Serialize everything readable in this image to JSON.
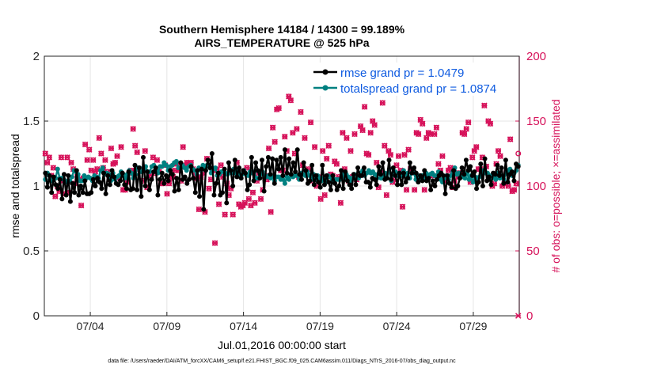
{
  "chart_data": {
    "type": "line",
    "title_line1": "Southern Hemisphere 14184 / 14300 = 99.189%",
    "title_line2": "AIRS_TEMPERATURE @ 525 hPa",
    "xlabel": "Jul.01,2016 00:00:00 start",
    "ylabel_left": "rmse and totalspread",
    "ylabel_right": "# of obs: o=possible; ×=assimilated",
    "footnote": "data file: /Users/raeder/DAI/ATM_forcXX/CAM6_setup/f.e21.FHIST_BGC.f09_025.CAM6assim.011/Diags_NTrS_2016-07/obs_diag_output.nc",
    "xlim": [
      1,
      32
    ],
    "ylim_left": [
      0,
      2
    ],
    "ylim_right": [
      0,
      200
    ],
    "x_ticks": [
      {
        "value": 4,
        "label": "07/04"
      },
      {
        "value": 9,
        "label": "07/09"
      },
      {
        "value": 14,
        "label": "07/14"
      },
      {
        "value": 19,
        "label": "07/19"
      },
      {
        "value": 24,
        "label": "07/24"
      },
      {
        "value": 29,
        "label": "07/29"
      }
    ],
    "y_ticks_left": [
      "0",
      "0.5",
      "1",
      "1.5",
      "2"
    ],
    "y_ticks_right": [
      "0",
      "50",
      "100",
      "150",
      "200"
    ],
    "grid": true,
    "legend_position": "top-right",
    "colors": {
      "rmse": "#000000",
      "spread": "#008080",
      "obs": "#d6125a"
    },
    "series": [
      {
        "name": "rmse grand pr = 1.0479",
        "key": "rmse",
        "values": [
          1.1,
          0.99,
          1.08,
          0.95,
          1.07,
          1.01,
          0.98,
          1.05,
          0.9,
          1.09,
          0.93,
          1.08,
          0.88,
          1.02,
          0.95,
          1.12,
          0.93,
          1.0,
          0.95,
          1.04,
          0.94,
          0.94,
          0.95,
          1.05,
          1.0,
          1.06,
          1.03,
          0.98,
          1.1,
          0.94,
          1.08,
          1.01,
          1.12,
          1.07,
          1.02,
          1.01,
          1.04,
          1.1,
          1.01,
          0.98,
          1.11,
          0.97,
          0.98,
          1.16,
          0.97,
          1.14,
          0.92,
          1.22,
          1.0,
          1.11,
          0.97,
          1.05,
          1.11,
          1.14,
          0.93,
          1.05,
          1.1,
          1.02,
          1.08,
          1.04,
          1.12,
          1.09,
          0.96,
          1.06,
          0.97,
          1.18,
          1.05,
          1.07,
          1.02,
          1.05,
          1.15,
          1.06,
          0.95,
          1.12,
          0.92,
          1.13,
          0.82,
          1.12,
          1.2,
          1.14,
          1.25,
          0.93,
          1.02,
          1.1,
          0.93,
          0.95,
          1.13,
          0.87,
          1.18,
          1.12,
          1.0,
          1.2,
          1.07,
          1.14,
          1.06,
          1.12,
          1.1,
          0.97,
          1.01,
          1.22,
          1.04,
          1.18,
          1.12,
          1.06,
          1.2,
          0.96,
          1.15,
          1.22,
          1.09,
          1.21,
          1.02,
          1.2,
          1.13,
          1.22,
          1.08,
          1.28,
          1.1,
          1.21,
          1.09,
          1.18,
          1.11,
          1.28,
          1.09,
          1.05,
          1.18,
          1.12,
          1.02,
          1.04,
          1.16,
          1.01,
          1.08,
          1.03,
          0.99,
          1.16,
          1.01,
          1.08,
          1.03,
          0.97,
          1.08,
          1.02,
          0.97,
          1.0,
          1.12,
          0.98,
          1.11,
          1.04,
          1.01,
          0.98,
          1.09,
          1.01,
          1.14,
          1.08,
          1.08,
          1.14,
          1.03,
          1.03,
          0.99,
          1.06,
          1.05,
          1.01,
          1.15,
          1.09,
          1.18,
          1.05,
          1.06,
          1.2,
          1.05,
          1.14,
          1.08,
          1.01,
          1.1,
          1.01,
          1.1,
          1.03,
          1.06,
          1.18,
          1.1,
          1.14,
          1.1,
          1.03,
          1.08,
          1.04,
          1.12,
          1.04,
          1.06,
          0.97,
          1.04,
          1.0,
          1.05,
          1.08,
          1.1,
          1.08,
          0.94,
          1.08,
          1.02,
          0.99,
          1.12,
          0.98,
          1.0,
          1.06,
          1.14,
          1.09,
          1.2,
          1.12,
          1.15,
          1.08,
          1.11,
          0.98,
          1.03,
          1.17,
          1.0,
          1.21,
          1.04,
          1.07,
          1.01,
          1.1,
          1.09,
          1.16,
          1.08,
          1.14,
          1.02,
          1.2,
          1.03,
          1.09,
          1.11,
          1.04,
          1.17,
          1.15
        ]
      },
      {
        "name": "totalspread grand pr = 1.0874",
        "key": "spread",
        "values": [
          1.05,
          1.1,
          1.08,
          1.04,
          1.06,
          1.06,
          1.13,
          1.06,
          1.06,
          1.05,
          1.03,
          1.04,
          1.04,
          1.07,
          1.12,
          1.11,
          1.09,
          1.04,
          1.04,
          1.08,
          1.06,
          1.07,
          1.06,
          1.04,
          1.08,
          1.07,
          1.06,
          1.12,
          1.14,
          1.09,
          1.1,
          1.09,
          1.04,
          1.1,
          1.05,
          1.07,
          1.08,
          1.11,
          1.09,
          1.06,
          1.09,
          1.12,
          1.1,
          1.06,
          1.09,
          1.14,
          1.14,
          1.11,
          1.12,
          1.15,
          1.11,
          1.11,
          1.15,
          1.16,
          1.13,
          1.1,
          1.15,
          1.15,
          1.18,
          1.16,
          1.12,
          1.15,
          1.16,
          1.18,
          1.19,
          1.14,
          1.14,
          1.16,
          1.14,
          1.12,
          1.15,
          1.16,
          1.13,
          1.12,
          1.09,
          1.14,
          1.12,
          1.16,
          1.14,
          1.16,
          1.15,
          1.1,
          1.13,
          1.14,
          1.08,
          1.09,
          1.11,
          1.11,
          1.1,
          1.09,
          1.12,
          1.1,
          1.13,
          1.1,
          1.12,
          1.09,
          1.09,
          1.12,
          1.09,
          1.08,
          1.11,
          1.1,
          1.11,
          1.06,
          1.06,
          1.09,
          1.11,
          1.08,
          1.07,
          1.08,
          1.06,
          1.07,
          1.04,
          1.07,
          1.07,
          1.05,
          1.05,
          1.02,
          1.07,
          1.05,
          1.09,
          1.07,
          1.08,
          1.08,
          1.05,
          1.1,
          1.09,
          1.08,
          1.11,
          1.08,
          1.05,
          1.09,
          1.05,
          1.08,
          1.06,
          1.04,
          1.06,
          1.03,
          1.08,
          1.07,
          1.03,
          1.05,
          1.05,
          1.05,
          1.05,
          1.1,
          1.06,
          1.09,
          1.07,
          1.04,
          1.06,
          1.09,
          1.07,
          1.06,
          1.1,
          1.12,
          1.08,
          1.1,
          1.12,
          1.1,
          1.11,
          1.09,
          1.06,
          1.1,
          1.06,
          1.07,
          1.1,
          1.06,
          1.13,
          1.04,
          1.1,
          1.11,
          1.08,
          1.1,
          1.08,
          1.12,
          1.09,
          1.1,
          1.06,
          1.1,
          1.1,
          1.05,
          1.08,
          1.06,
          1.08,
          1.06,
          1.1,
          1.07,
          1.09,
          1.1,
          1.08,
          1.08,
          1.11,
          1.05,
          1.03,
          1.06,
          1.08,
          1.05,
          1.08,
          1.11,
          1.14,
          1.09,
          1.1,
          1.07,
          1.07,
          1.06,
          1.1,
          1.05,
          1.08,
          1.03,
          1.07,
          1.05,
          1.07,
          1.08,
          1.12,
          1.1,
          1.1,
          1.08,
          1.06,
          1.08,
          1.05,
          1.1,
          1.06,
          1.08,
          1.05,
          1.1,
          1.12,
          1.13,
          1.08,
          1.1,
          1.12,
          1.16
        ]
      }
    ],
    "obs_possible": [
      125,
      118,
      122,
      108,
      114,
      92,
      100,
      96,
      122,
      104,
      94,
      122,
      95,
      118,
      113,
      102,
      107,
      105,
      85,
      106,
      132,
      120,
      128,
      112,
      120,
      111,
      113,
      137,
      125,
      114,
      120,
      111,
      105,
      129,
      117,
      118,
      123,
      106,
      130,
      97,
      97,
      103,
      110,
      112,
      144,
      131,
      126,
      113,
      112,
      104,
      127,
      99,
      110,
      108,
      122,
      110,
      120,
      111,
      102,
      102,
      116,
      94,
      102,
      106,
      107,
      112,
      117,
      112,
      104,
      130,
      116,
      118,
      117,
      118,
      113,
      109,
      106,
      82,
      107,
      110,
      80,
      121,
      98,
      105,
      112,
      56,
      113,
      86,
      116,
      107,
      78,
      102,
      93,
      98,
      78,
      112,
      118,
      86,
      84,
      85,
      87,
      114,
      90,
      85,
      95,
      87,
      104,
      110,
      90,
      97,
      108,
      105,
      129,
      80,
      145,
      134,
      159,
      160,
      112,
      112,
      138,
      127,
      169,
      166,
      141,
      125,
      144,
      107,
      157,
      116,
      137,
      110,
      113,
      149,
      104,
      130,
      100,
      107,
      90,
      127,
      93,
      121,
      131,
      109,
      108,
      119,
      117,
      107,
      87,
      141,
      113,
      137,
      104,
      127,
      107,
      140,
      105,
      108,
      146,
      143,
      161,
      125,
      124,
      141,
      150,
      147,
      118,
      99,
      110,
      164,
      131,
      93,
      127,
      124,
      103,
      105,
      116,
      123,
      112,
      84,
      124,
      97,
      128,
      113,
      111,
      97,
      141,
      140,
      151,
      148,
      97,
      137,
      141,
      140,
      108,
      140,
      145,
      117,
      112,
      123,
      104,
      107,
      112,
      114,
      99,
      104,
      110,
      107,
      110,
      141,
      140,
      144,
      149,
      103,
      122,
      127,
      130,
      113,
      113,
      122,
      162,
      115,
      150,
      148,
      100,
      102,
      117,
      127,
      123,
      100,
      102,
      110,
      100,
      136,
      96,
      97,
      102,
      125
    ],
    "obs_assimilated": [
      125,
      118,
      122,
      108,
      114,
      92,
      100,
      96,
      122,
      104,
      94,
      122,
      95,
      118,
      113,
      102,
      107,
      105,
      85,
      106,
      132,
      120,
      128,
      112,
      120,
      111,
      113,
      137,
      125,
      114,
      120,
      111,
      105,
      129,
      117,
      118,
      123,
      106,
      130,
      97,
      97,
      103,
      110,
      112,
      144,
      131,
      126,
      113,
      112,
      104,
      127,
      99,
      110,
      108,
      122,
      110,
      120,
      111,
      102,
      102,
      116,
      94,
      102,
      106,
      107,
      112,
      117,
      112,
      104,
      130,
      116,
      118,
      117,
      118,
      113,
      109,
      106,
      82,
      107,
      110,
      80,
      121,
      98,
      105,
      112,
      56,
      113,
      86,
      116,
      107,
      78,
      102,
      93,
      98,
      78,
      112,
      118,
      86,
      84,
      85,
      87,
      114,
      90,
      85,
      95,
      87,
      104,
      110,
      90,
      97,
      108,
      105,
      129,
      80,
      145,
      134,
      159,
      160,
      112,
      112,
      138,
      127,
      169,
      166,
      141,
      125,
      144,
      107,
      157,
      116,
      137,
      110,
      113,
      149,
      104,
      130,
      100,
      107,
      90,
      127,
      93,
      121,
      131,
      109,
      108,
      119,
      117,
      107,
      87,
      141,
      113,
      137,
      104,
      127,
      107,
      140,
      105,
      108,
      146,
      143,
      161,
      125,
      124,
      141,
      150,
      147,
      118,
      99,
      110,
      164,
      131,
      93,
      127,
      124,
      103,
      105,
      116,
      123,
      112,
      84,
      124,
      97,
      128,
      113,
      111,
      97,
      141,
      140,
      151,
      148,
      97,
      137,
      141,
      140,
      108,
      140,
      145,
      117,
      112,
      123,
      104,
      107,
      112,
      114,
      99,
      104,
      110,
      107,
      110,
      141,
      140,
      144,
      149,
      103,
      122,
      127,
      130,
      113,
      113,
      122,
      162,
      115,
      150,
      148,
      100,
      102,
      117,
      127,
      123,
      100,
      102,
      110,
      100,
      136,
      96,
      97,
      102,
      0
    ]
  }
}
